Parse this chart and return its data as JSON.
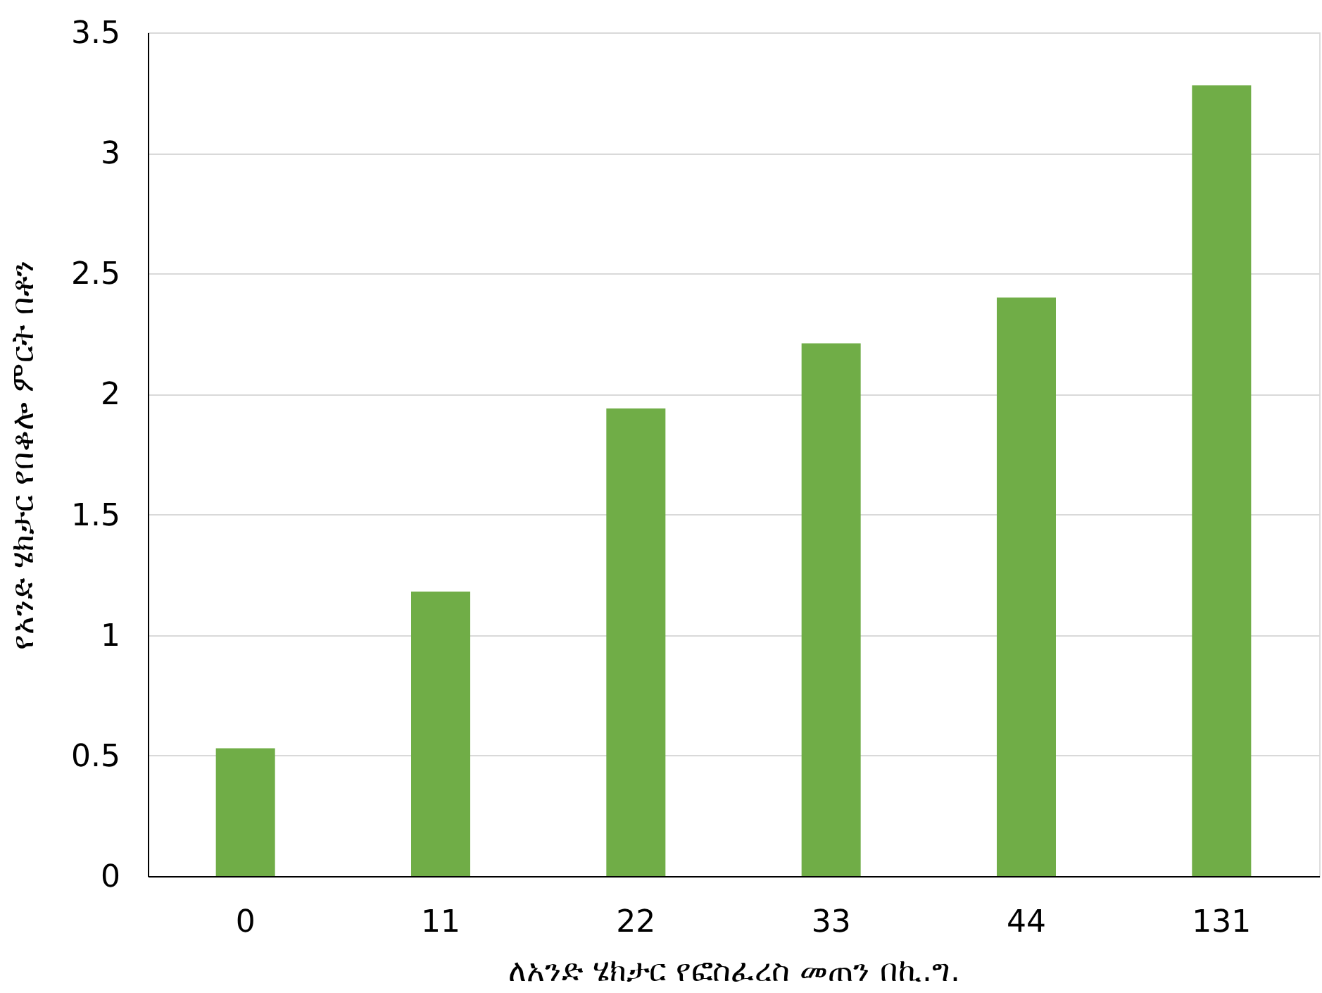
{
  "chart_data": {
    "type": "bar",
    "xlabel": "ለአንድ ሄክታር የፎስፈረስ መጠን በኪ.ግ.",
    "ylabel": "የአንድ ሄክታር የበቆሎ ምርት በቶን",
    "categories": [
      "0",
      "11",
      "22",
      "33",
      "44",
      "131"
    ],
    "values": [
      0.53,
      1.18,
      1.94,
      2.21,
      2.4,
      3.28
    ],
    "color": "#70ad47",
    "ylim": [
      0,
      3.5
    ],
    "yticks": [
      0,
      0.5,
      1,
      1.5,
      2,
      2.5,
      3,
      3.5
    ],
    "grid": "y"
  }
}
